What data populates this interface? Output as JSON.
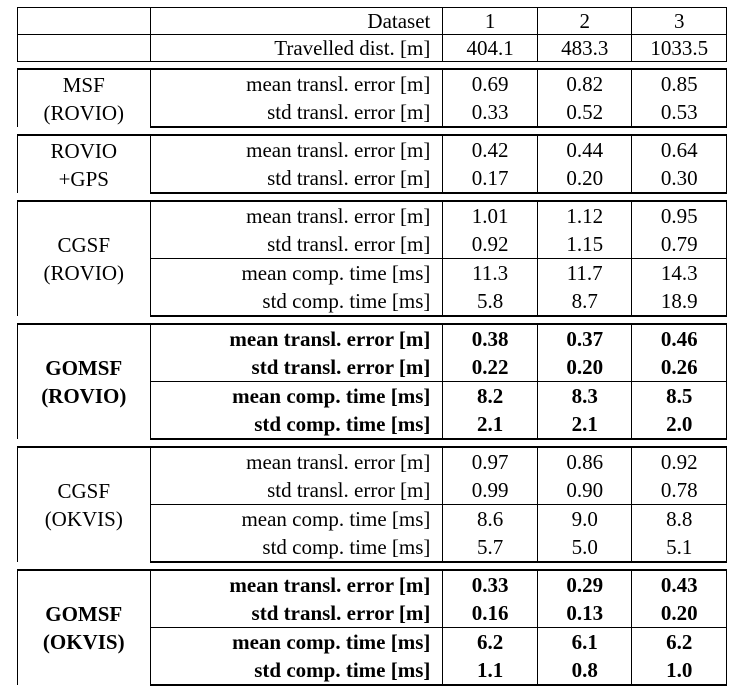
{
  "header": {
    "dataset_label": "Dataset",
    "datasets": [
      "1",
      "2",
      "3"
    ],
    "distance_label": "Travelled dist. [m]",
    "distances": [
      "404.1",
      "483.3",
      "1033.5"
    ]
  },
  "groups": [
    {
      "method": [
        "MSF",
        "(ROVIO)"
      ],
      "bold": false,
      "rows": [
        {
          "metric": "mean transl. error [m]",
          "values": [
            "0.69",
            "0.82",
            "0.85"
          ]
        },
        {
          "metric": "std transl. error [m]",
          "values": [
            "0.33",
            "0.52",
            "0.53"
          ]
        }
      ]
    },
    {
      "method": [
        "ROVIO",
        "+GPS"
      ],
      "bold": false,
      "rows": [
        {
          "metric": "mean transl. error [m]",
          "values": [
            "0.42",
            "0.44",
            "0.64"
          ]
        },
        {
          "metric": "std transl. error [m]",
          "values": [
            "0.17",
            "0.20",
            "0.30"
          ]
        }
      ]
    },
    {
      "method": [
        "CGSF",
        "(ROVIO)"
      ],
      "bold": false,
      "rows": [
        {
          "metric": "mean transl. error [m]",
          "values": [
            "1.01",
            "1.12",
            "0.95"
          ]
        },
        {
          "metric": "std transl. error [m]",
          "values": [
            "0.92",
            "1.15",
            "0.79"
          ]
        },
        {
          "metric": "mean comp. time [ms]",
          "values": [
            "11.3",
            "11.7",
            "14.3"
          ]
        },
        {
          "metric": "std comp. time [ms]",
          "values": [
            "5.8",
            "8.7",
            "18.9"
          ]
        }
      ]
    },
    {
      "method": [
        "GOMSF",
        "(ROVIO)"
      ],
      "bold": true,
      "rows": [
        {
          "metric": "mean transl. error [m]",
          "values": [
            "0.38",
            "0.37",
            "0.46"
          ]
        },
        {
          "metric": "std transl. error [m]",
          "values": [
            "0.22",
            "0.20",
            "0.26"
          ]
        },
        {
          "metric": "mean comp. time [ms]",
          "values": [
            "8.2",
            "8.3",
            "8.5"
          ]
        },
        {
          "metric": "std comp. time [ms]",
          "values": [
            "2.1",
            "2.1",
            "2.0"
          ]
        }
      ]
    },
    {
      "method": [
        "CGSF",
        "(OKVIS)"
      ],
      "bold": false,
      "rows": [
        {
          "metric": "mean transl. error [m]",
          "values": [
            "0.97",
            "0.86",
            "0.92"
          ]
        },
        {
          "metric": "std transl. error [m]",
          "values": [
            "0.99",
            "0.90",
            "0.78"
          ]
        },
        {
          "metric": "mean comp. time [ms]",
          "values": [
            "8.6",
            "9.0",
            "8.8"
          ]
        },
        {
          "metric": "std comp. time [ms]",
          "values": [
            "5.7",
            "5.0",
            "5.1"
          ]
        }
      ]
    },
    {
      "method": [
        "GOMSF",
        "(OKVIS)"
      ],
      "bold": true,
      "rows": [
        {
          "metric": "mean transl. error [m]",
          "values": [
            "0.33",
            "0.29",
            "0.43"
          ]
        },
        {
          "metric": "std transl. error [m]",
          "values": [
            "0.16",
            "0.13",
            "0.20"
          ]
        },
        {
          "metric": "mean comp. time [ms]",
          "values": [
            "6.2",
            "6.1",
            "6.2"
          ]
        },
        {
          "metric": "std comp. time [ms]",
          "values": [
            "1.1",
            "0.8",
            "1.0"
          ]
        }
      ]
    }
  ]
}
